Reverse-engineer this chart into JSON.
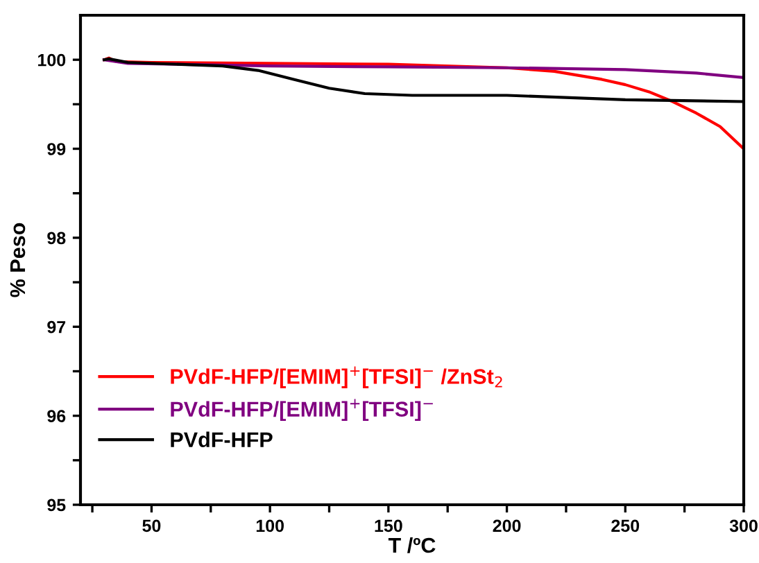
{
  "chart_data": {
    "type": "line",
    "xlabel": "T /ºC",
    "ylabel": "% Peso",
    "xlim": [
      20,
      300
    ],
    "ylim": [
      95,
      100.5
    ],
    "xticks": [
      {
        "value": 25,
        "label": null
      },
      50,
      {
        "value": 75,
        "label": null
      },
      100,
      {
        "value": 125,
        "label": null
      },
      150,
      {
        "value": 175,
        "label": null
      },
      200,
      {
        "value": 225,
        "label": null
      },
      250,
      {
        "value": 275,
        "label": null
      },
      300
    ],
    "yticks": [
      95,
      {
        "value": 95.5,
        "label": null
      },
      96,
      {
        "value": 96.5,
        "label": null
      },
      97,
      {
        "value": 97.5,
        "label": null
      },
      98,
      {
        "value": 98.5,
        "label": null
      },
      99,
      {
        "value": 99.5,
        "label": null
      },
      100
    ],
    "grid": false,
    "legend": "bottom left",
    "line_style": "solid",
    "marker": "none",
    "series": [
      {
        "name": "PVdF-HFP/[EMIM]$^{+}$[TFSI]$^{−}$ /ZnSt$_{2}$",
        "color": "#ff0000",
        "x": [
          30,
          32,
          35,
          50,
          100,
          150,
          200,
          220,
          240,
          250,
          260,
          270,
          280,
          290,
          300
        ],
        "values": [
          100.0,
          100.02,
          99.98,
          99.97,
          99.96,
          99.95,
          99.91,
          99.87,
          99.78,
          99.72,
          99.64,
          99.53,
          99.4,
          99.25,
          99.0
        ]
      },
      {
        "name": "PVdF-HFP/[EMIM]$^{+}$[TFSI]$^{−}$",
        "color": "#800080",
        "x": [
          30,
          40,
          100,
          150,
          200,
          250,
          280,
          300
        ],
        "values": [
          100.0,
          99.96,
          99.93,
          99.92,
          99.91,
          99.89,
          99.85,
          99.8
        ]
      },
      {
        "name": "PVdF-HFP",
        "color": "#000000",
        "x": [
          30,
          32,
          40,
          80,
          95,
          110,
          125,
          140,
          160,
          200,
          250,
          300
        ],
        "values": [
          100.0,
          100.01,
          99.97,
          99.93,
          99.88,
          99.78,
          99.68,
          99.62,
          99.6,
          99.6,
          99.55,
          99.53
        ]
      }
    ]
  }
}
